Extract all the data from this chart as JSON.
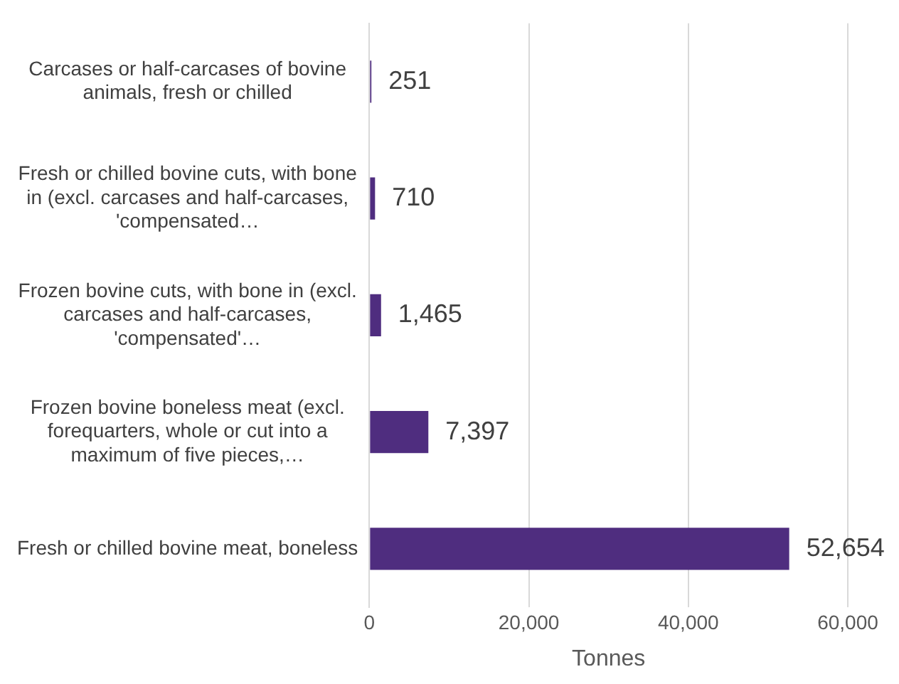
{
  "chart_data": {
    "type": "bar",
    "orientation": "horizontal",
    "xlabel": "Tonnes",
    "categories": [
      "Carcases or half-carcases of bovine animals, fresh or chilled",
      "Fresh or chilled bovine cuts, with bone in (excl. carcases and half-carcases, 'compensated…",
      "Frozen bovine cuts, with bone in (excl. carcases and half-carcases, 'compensated'…",
      "Frozen bovine boneless meat (excl. forequarters, whole or cut into a maximum of five pieces,…",
      "Fresh or chilled bovine meat, boneless"
    ],
    "values": [
      251,
      710,
      1465,
      7397,
      52654
    ],
    "color": "#4f2d7f",
    "xlim": [
      0,
      60000
    ],
    "xticks": [
      {
        "value": 0,
        "label": "0"
      },
      {
        "value": 20000,
        "label": "20,000"
      },
      {
        "value": 40000,
        "label": "40,000"
      },
      {
        "value": 60000,
        "label": "60,000"
      }
    ],
    "value_labels": [
      "251",
      "710",
      "1,465",
      "7,397",
      "52,654"
    ],
    "grid": "x",
    "legend": false
  }
}
